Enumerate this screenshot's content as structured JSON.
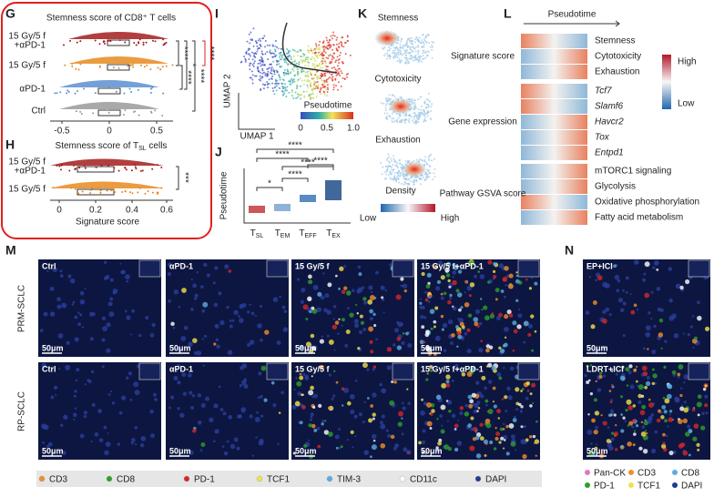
{
  "panels": {
    "G": {
      "letter": "G",
      "title": "Stemness score of CD8⁺ T cells",
      "groups": [
        [
          "15 Gy/5 f",
          "+αPD-1"
        ],
        [
          "15 Gy/5 f"
        ],
        [
          "αPD-1"
        ],
        [
          "Ctrl"
        ]
      ],
      "xticks": [
        "-0.5",
        "0",
        "0.5"
      ],
      "significance": [
        "****",
        "*",
        "****",
        "****",
        "****"
      ]
    },
    "H": {
      "letter": "H",
      "title": [
        "Stemness score of T",
        "SL",
        " cells"
      ],
      "groups": [
        [
          "15 Gy/5 f",
          "+αPD-1"
        ],
        [
          "15 Gy/5 f"
        ]
      ],
      "xticks": [
        "0",
        "0.2",
        "0.4",
        "0.6"
      ],
      "xlabel": "Signature score",
      "significance": [
        "***"
      ]
    },
    "I": {
      "letter": "I",
      "ylabel": "UMAP 2",
      "xlabel": "UMAP 1",
      "colorbar_title": "Pseudotime",
      "colorbar_ticks": [
        "0",
        "0.5",
        "1.0"
      ]
    },
    "J": {
      "letter": "J",
      "ylabel": "Pseudotime",
      "categories": [
        {
          "main": "T",
          "sub": "SL"
        },
        {
          "main": "T",
          "sub": "EM"
        },
        {
          "main": "T",
          "sub": "EFF"
        },
        {
          "main": "T",
          "sub": "EX"
        }
      ],
      "significance": [
        "****",
        "****",
        "****",
        "****",
        "****",
        "*"
      ]
    },
    "K": {
      "letter": "K",
      "titles": [
        "Stemness",
        "Cytotoxicity",
        "Exhaustion"
      ],
      "colorbar_low": "Low",
      "colorbar_title": "Density",
      "colorbar_high": "High"
    },
    "L": {
      "letter": "L",
      "header": "Pseudotime",
      "groups": [
        "Signature score",
        "Gene expression",
        "Pathway GSVA score"
      ],
      "rows": [
        "Stemness",
        "Cytotoxicity",
        "Exhaustion",
        "Tcf7",
        "Slamf6",
        "Havcr2",
        "Tox",
        "Entpd1",
        "mTORC1 signaling",
        "Glycolysis",
        "Oxidative phosphorylation",
        "Fatty acid metabolism"
      ],
      "legend_high": "High",
      "legend_low": "Low"
    },
    "M": {
      "letter": "M",
      "row_labels": [
        "PRM-SCLC",
        "RP-SCLC"
      ],
      "columns": [
        "Ctrl",
        "αPD-1",
        "15 Gy/5 f",
        "15 Gy/5 f+αPD-1"
      ],
      "scale": "50μm",
      "legend": [
        "CD3",
        "CD8",
        "PD-1",
        "TCF1",
        "TIM-3",
        "CD11c",
        "DAPI"
      ]
    },
    "N": {
      "letter": "N",
      "columns": [
        "EP+ICI",
        "LDRT+ICI"
      ],
      "scale": "50μm",
      "legend": [
        "Pan-CK",
        "CD3",
        "CD8",
        "PD-1",
        "TCF1",
        "DAPI"
      ]
    }
  }
}
